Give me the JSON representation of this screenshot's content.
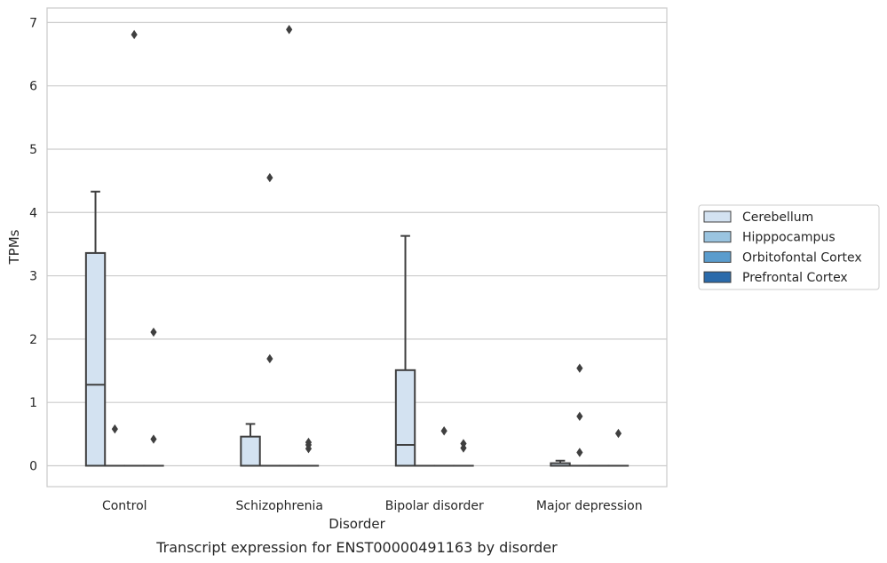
{
  "chart_data": {
    "type": "box",
    "title": "Transcript expression for ENST00000491163 by disorder",
    "xlabel": "Disorder",
    "ylabel": "TPMs",
    "ylim": [
      -0.33,
      7.23
    ],
    "yticks": [
      "0",
      "1",
      "2",
      "3",
      "4",
      "5",
      "6",
      "7"
    ],
    "grid": true,
    "legend_position": "right",
    "categories": [
      "Control",
      "Schizophrenia",
      "Bipolar disorder",
      "Major depression"
    ],
    "series": [
      {
        "name": "Cerebellum",
        "color": "#d3e2f1",
        "boxes": [
          {
            "whisker_low": 0,
            "q1": 0,
            "median": 1.28,
            "q3": 3.36,
            "whisker_high": 4.33,
            "outliers": []
          },
          {
            "whisker_low": 0,
            "q1": 0,
            "median": 0,
            "q3": 0.46,
            "whisker_high": 0.66,
            "outliers": []
          },
          {
            "whisker_low": 0,
            "q1": 0,
            "median": 0.33,
            "q3": 1.51,
            "whisker_high": 3.63,
            "outliers": []
          },
          {
            "whisker_low": 0,
            "q1": 0,
            "median": 0,
            "q3": 0.04,
            "whisker_high": 0.08,
            "outliers": []
          }
        ]
      },
      {
        "name": "Hipppocampus",
        "color": "#9ac4e0",
        "boxes": [
          {
            "whisker_low": 0,
            "q1": 0,
            "median": 0,
            "q3": 0,
            "whisker_high": 0,
            "outliers": [
              0.58
            ]
          },
          {
            "whisker_low": 0,
            "q1": 0,
            "median": 0,
            "q3": 0,
            "whisker_high": 0,
            "outliers": [
              1.69,
              4.55
            ]
          },
          {
            "whisker_low": 0,
            "q1": 0,
            "median": 0,
            "q3": 0,
            "whisker_high": 0,
            "outliers": []
          },
          {
            "whisker_low": 0,
            "q1": 0,
            "median": 0,
            "q3": 0,
            "whisker_high": 0,
            "outliers": [
              0.21,
              0.78,
              1.54
            ]
          }
        ]
      },
      {
        "name": "Orbitofontal Cortex",
        "color": "#5a9ccd",
        "boxes": [
          {
            "whisker_low": 0,
            "q1": 0,
            "median": 0,
            "q3": 0,
            "whisker_high": 0,
            "outliers": [
              6.81
            ]
          },
          {
            "whisker_low": 0,
            "q1": 0,
            "median": 0,
            "q3": 0,
            "whisker_high": 0,
            "outliers": [
              6.89
            ]
          },
          {
            "whisker_low": 0,
            "q1": 0,
            "median": 0,
            "q3": 0,
            "whisker_high": 0,
            "outliers": [
              0.55
            ]
          },
          {
            "whisker_low": 0,
            "q1": 0,
            "median": 0,
            "q3": 0,
            "whisker_high": 0,
            "outliers": []
          }
        ]
      },
      {
        "name": "Prefrontal Cortex",
        "color": "#2a6aaa",
        "boxes": [
          {
            "whisker_low": 0,
            "q1": 0,
            "median": 0,
            "q3": 0,
            "whisker_high": 0,
            "outliers": [
              0.42,
              2.11
            ]
          },
          {
            "whisker_low": 0,
            "q1": 0,
            "median": 0,
            "q3": 0,
            "whisker_high": 0,
            "outliers": [
              0.27,
              0.33,
              0.37
            ]
          },
          {
            "whisker_low": 0,
            "q1": 0,
            "median": 0,
            "q3": 0,
            "whisker_high": 0,
            "outliers": [
              0.28,
              0.35
            ]
          },
          {
            "whisker_low": 0,
            "q1": 0,
            "median": 0,
            "q3": 0,
            "whisker_high": 0,
            "outliers": [
              0.51
            ]
          }
        ]
      }
    ]
  },
  "colors": {
    "grid": "#cccccc",
    "spine": "#cccccc",
    "box_edge": "#3f3f3f",
    "outlier": "#3f3f3f"
  }
}
